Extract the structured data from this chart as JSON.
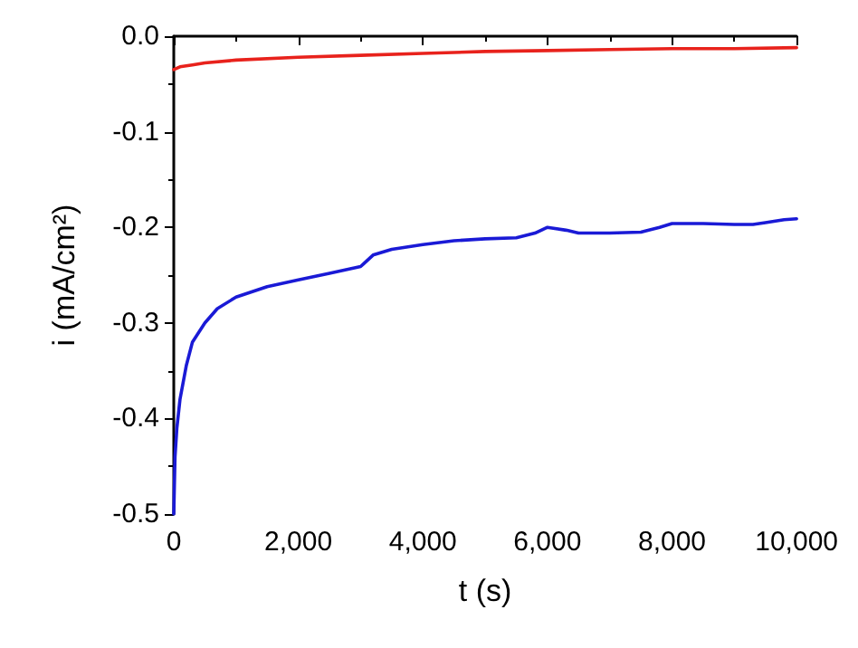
{
  "chart_data": {
    "type": "line",
    "xlabel": "t (s)",
    "ylabel": "i (mA/cm²)",
    "xlim": [
      0,
      10000
    ],
    "xticks": [
      0,
      {
        "value": 2000,
        "label": "2,000"
      },
      {
        "value": 4000,
        "label": "4,000"
      },
      {
        "value": 6000,
        "label": "6,000"
      },
      {
        "value": 8000,
        "label": "8,000"
      },
      {
        "value": 10000,
        "label": "10,000"
      }
    ],
    "ylim": [
      -0.5,
      0
    ],
    "yticks": [
      -0.5,
      -0.4,
      -0.3,
      -0.2,
      -0.1,
      {
        "value": 0,
        "label": "0.0"
      }
    ],
    "grid": false,
    "marker": "none",
    "line_style": "solid",
    "series": [
      {
        "color": "#e8221c",
        "x": [
          0,
          100,
          300,
          500,
          1000,
          2000,
          3000,
          4000,
          5000,
          6000,
          7000,
          8000,
          9000,
          10000
        ],
        "values": [
          -0.035,
          -0.032,
          -0.03,
          -0.028,
          -0.025,
          -0.022,
          -0.02,
          -0.018,
          -0.016,
          -0.015,
          -0.014,
          -0.013,
          -0.013,
          -0.012
        ]
      },
      {
        "color": "#1a1ad6",
        "x": [
          0,
          20,
          50,
          100,
          200,
          300,
          500,
          700,
          1000,
          1500,
          2000,
          2500,
          3000,
          3050,
          3200,
          3500,
          4000,
          4500,
          5000,
          5500,
          5800,
          6000,
          6300,
          6500,
          7000,
          7500,
          7800,
          8000,
          8500,
          9000,
          9300,
          9500,
          9800,
          10000
        ],
        "values": [
          -0.5,
          -0.44,
          -0.41,
          -0.38,
          -0.345,
          -0.32,
          -0.3,
          -0.285,
          -0.273,
          -0.262,
          -0.255,
          -0.248,
          -0.241,
          -0.238,
          -0.229,
          -0.223,
          -0.218,
          -0.214,
          -0.212,
          -0.211,
          -0.206,
          -0.2,
          -0.203,
          -0.206,
          -0.206,
          -0.205,
          -0.2,
          -0.196,
          -0.196,
          -0.197,
          -0.197,
          -0.195,
          -0.192,
          -0.191
        ]
      }
    ]
  }
}
